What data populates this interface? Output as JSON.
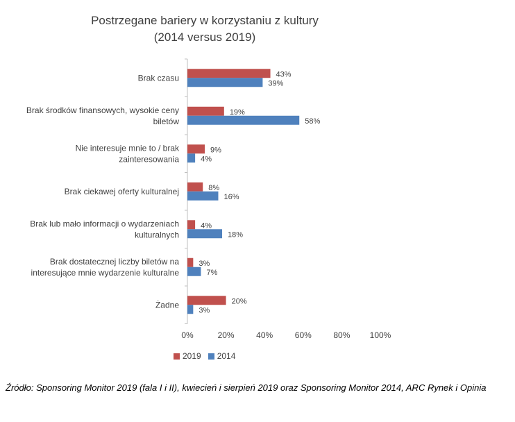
{
  "chart_data": {
    "type": "bar",
    "orientation": "horizontal",
    "title_lines": [
      "Postrzegane bariery w korzystaniu z kultury",
      "(2014 versus 2019)"
    ],
    "categories": [
      [
        "Brak czasu"
      ],
      [
        "Brak środków finansowych,  wysokie ceny",
        "biletów"
      ],
      [
        "Nie interesuje mnie to / brak",
        "zainteresowania"
      ],
      [
        "Brak ciekawej oferty kulturalnej"
      ],
      [
        "Brak lub mało informacji  o wydarzeniach",
        "kulturalnych"
      ],
      [
        "Brak dostatecznej liczby biletów na",
        "interesujące mnie wydarzenie kulturalne"
      ],
      [
        "Żadne"
      ]
    ],
    "series": [
      {
        "name": "2019",
        "color": "#c0504d",
        "values": [
          43,
          19,
          9,
          8,
          4,
          3,
          20
        ],
        "labels": [
          "43%",
          "19%",
          "9%",
          "8%",
          "4%",
          "3%",
          "20%"
        ]
      },
      {
        "name": "2014",
        "color": "#4f81bd",
        "values": [
          39,
          58,
          4,
          16,
          18,
          7,
          3
        ],
        "labels": [
          "39%",
          "58%",
          "4%",
          "16%",
          "18%",
          "7%",
          "3%"
        ]
      }
    ],
    "xlim": [
      0,
      100
    ],
    "xticks": [
      0,
      20,
      40,
      60,
      80,
      100
    ],
    "xtick_labels": [
      "0%",
      "20%",
      "40%",
      "60%",
      "80%",
      "100%"
    ],
    "grid": false,
    "legend_position": "bottom"
  },
  "source_note": "Źródło: Sponsoring Monitor 2019 (fala I i II), kwiecień i sierpień 2019 oraz Sponsoring Monitor 2014, ARC Rynek i Opinia"
}
